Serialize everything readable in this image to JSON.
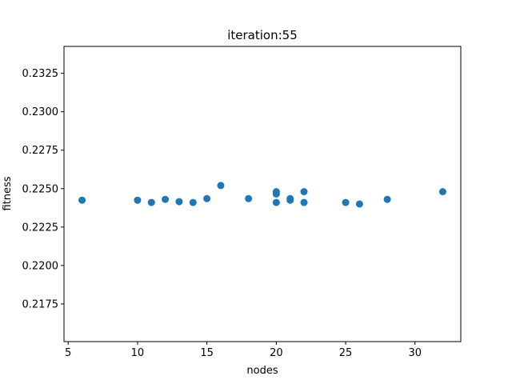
{
  "chart_data": {
    "type": "scatter",
    "title": "iteration:55",
    "xlabel": "nodes",
    "ylabel": "fitness",
    "xlim": [
      4.7,
      33.3
    ],
    "ylim": [
      0.21505,
      0.23425
    ],
    "x_ticks": [
      5,
      10,
      15,
      20,
      25,
      30
    ],
    "y_ticks": [
      0.2175,
      0.22,
      0.2225,
      0.225,
      0.2275,
      0.23,
      0.2325
    ],
    "y_tick_labels": [
      "0.2175",
      "0.2200",
      "0.2225",
      "0.2250",
      "0.2275",
      "0.2300",
      "0.2325"
    ],
    "grid": false,
    "marker_color": "#1f77b4",
    "points": [
      {
        "x": 6,
        "y": 0.22425
      },
      {
        "x": 10,
        "y": 0.22425
      },
      {
        "x": 11,
        "y": 0.2241
      },
      {
        "x": 12,
        "y": 0.2243
      },
      {
        "x": 13,
        "y": 0.22415
      },
      {
        "x": 14,
        "y": 0.2241
      },
      {
        "x": 15,
        "y": 0.22435
      },
      {
        "x": 16,
        "y": 0.2252
      },
      {
        "x": 18,
        "y": 0.22435
      },
      {
        "x": 20,
        "y": 0.2248
      },
      {
        "x": 20,
        "y": 0.22465
      },
      {
        "x": 20,
        "y": 0.2241
      },
      {
        "x": 21,
        "y": 0.22435
      },
      {
        "x": 21,
        "y": 0.22425
      },
      {
        "x": 22,
        "y": 0.2248
      },
      {
        "x": 22,
        "y": 0.2241
      },
      {
        "x": 25,
        "y": 0.2241
      },
      {
        "x": 26,
        "y": 0.224
      },
      {
        "x": 28,
        "y": 0.2243
      },
      {
        "x": 32,
        "y": 0.2248
      }
    ]
  }
}
